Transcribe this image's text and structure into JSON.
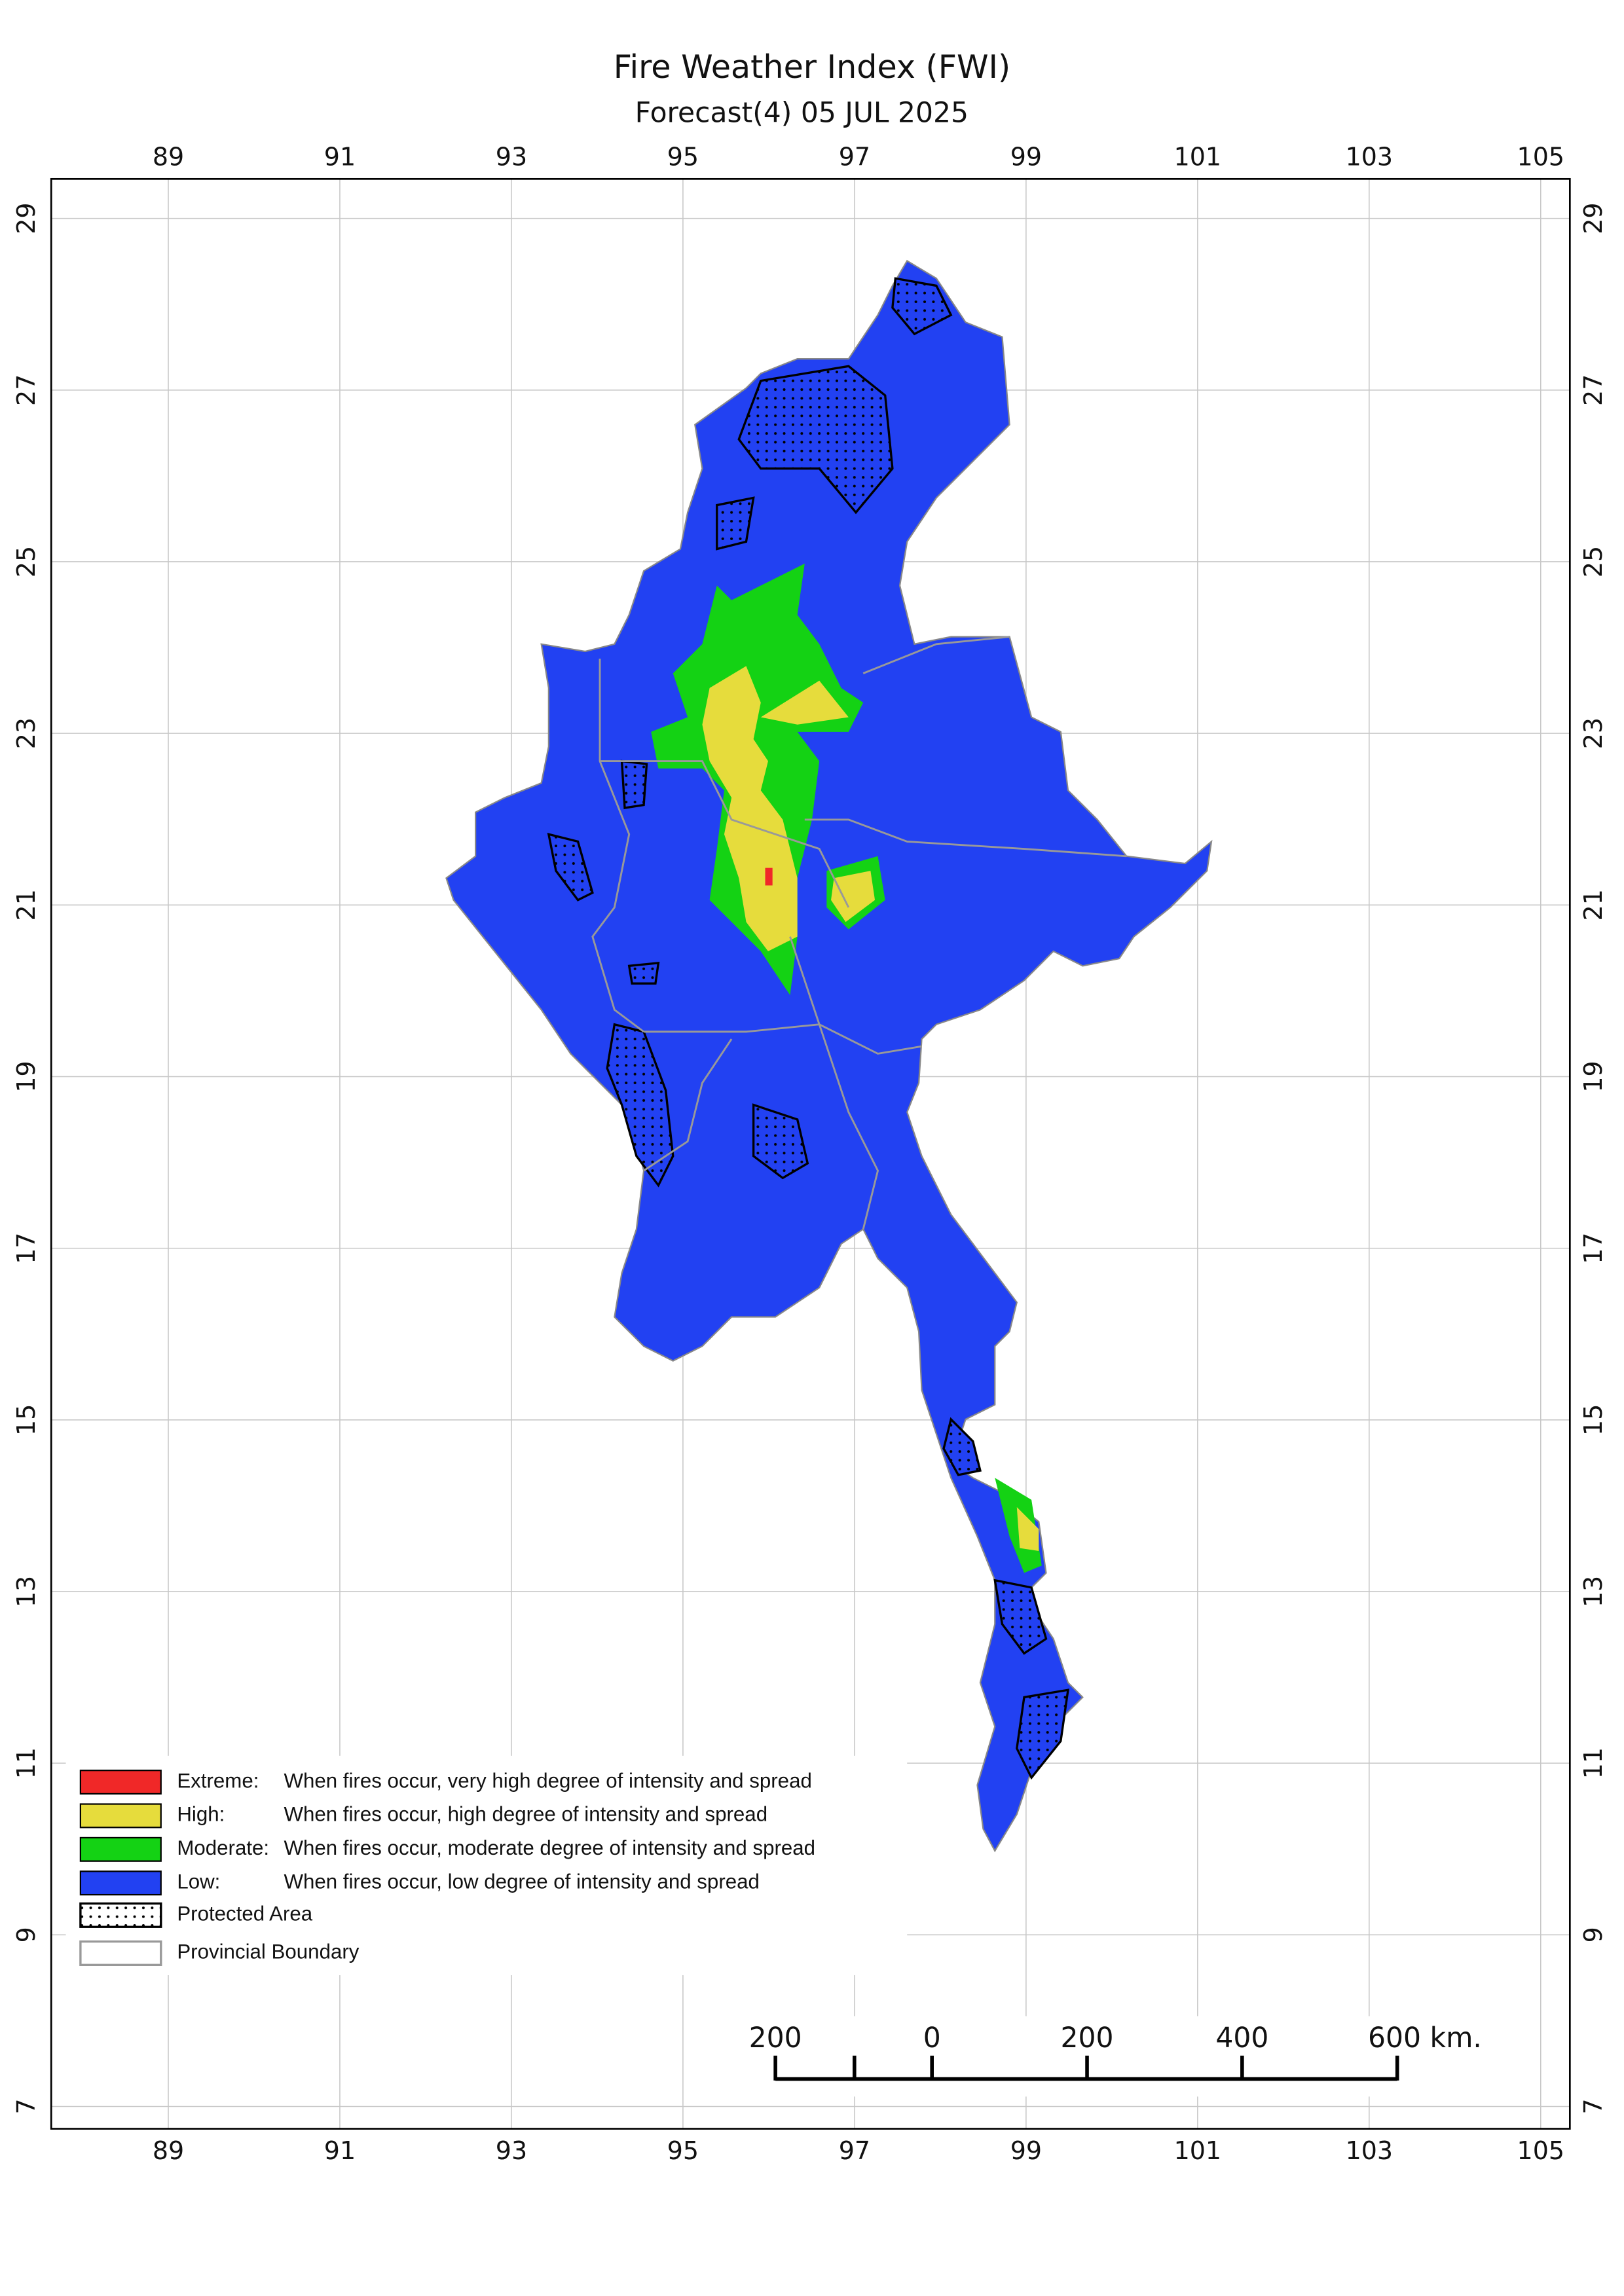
{
  "map": {
    "title": "Fire Weather Index (FWI)",
    "subtitle": "Forecast(4) 05 JUL 2025",
    "xlim": [
      87.635,
      105.34
    ],
    "ylim": [
      6.74,
      29.46
    ],
    "xticks": [
      89,
      91,
      93,
      95,
      97,
      99,
      101,
      103,
      105
    ],
    "yticks": [
      7,
      9,
      11,
      13,
      15,
      17,
      19,
      21,
      23,
      25,
      27,
      29
    ],
    "grid": true,
    "legend": [
      {
        "label": "Extreme:",
        "description": "When fires occur, very high degree of intensity and spread",
        "color": "#f02828"
      },
      {
        "label": "High:",
        "description": "When fires occur, high degree of intensity and spread",
        "color": "#e6dc3c"
      },
      {
        "label": "Moderate:",
        "description": "When fires occur, moderate degree of intensity and spread",
        "color": "#14d214"
      },
      {
        "label": "Low:",
        "description": "When fires occur, low degree of intensity and spread",
        "color": "#2241f2"
      },
      {
        "label": "Protected Area"
      },
      {
        "label": "Provincial Boundary"
      }
    ],
    "scale_bar": [
      "200",
      "0",
      "200",
      "400",
      "600 km."
    ]
  }
}
